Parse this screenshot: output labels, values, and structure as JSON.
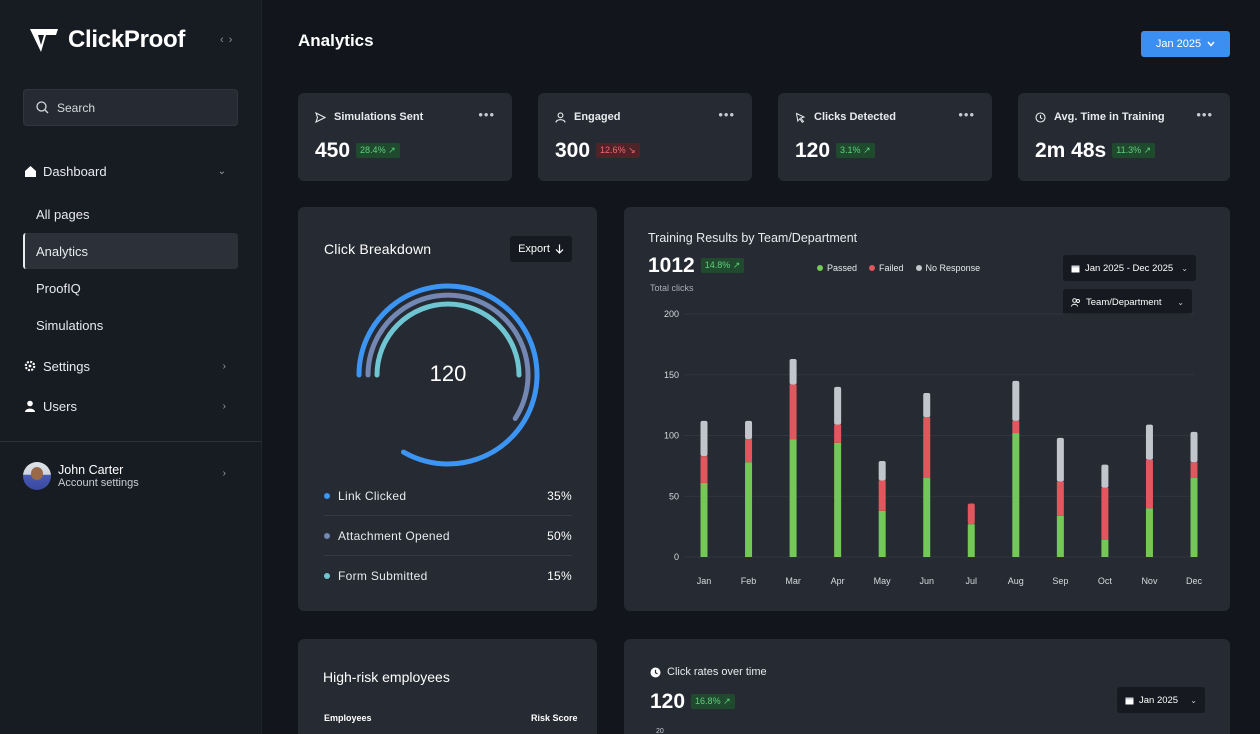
{
  "app": {
    "name": "ClickProof"
  },
  "sidebar": {
    "search_label": "Search",
    "dashboard": {
      "label": "Dashboard"
    },
    "dashboard_items": [
      {
        "label": "All pages"
      },
      {
        "label": "Analytics"
      },
      {
        "label": "ProofIQ"
      },
      {
        "label": "Simulations"
      }
    ],
    "settings": {
      "label": "Settings"
    },
    "users": {
      "label": "Users"
    },
    "account": {
      "name": "John Carter",
      "subtitle": "Account settings"
    }
  },
  "header": {
    "title": "Analytics",
    "date_button": "Jan 2025"
  },
  "stats": [
    {
      "label": "Simulations Sent",
      "value": "450",
      "delta": "28.4%",
      "trend": "up",
      "icon": "send-icon"
    },
    {
      "label": "Engaged",
      "value": "300",
      "delta": "12.6%",
      "trend": "down",
      "icon": "user-icon"
    },
    {
      "label": "Clicks Detected",
      "value": "120",
      "delta": "3.1%",
      "trend": "up",
      "icon": "cursor-icon"
    },
    {
      "label": "Avg. Time in Training",
      "value": "2m 48s",
      "delta": "11.3%",
      "trend": "up",
      "icon": "clock-icon"
    }
  ],
  "click_breakdown": {
    "title": "Click Breakdown",
    "export_label": "Export",
    "center_value": "120",
    "items": [
      {
        "label": "Link Clicked",
        "value": "35%",
        "color": "#3d95f3"
      },
      {
        "label": "Attachment Opened",
        "value": "50%",
        "color": "#7387b3"
      },
      {
        "label": "Form Submitted",
        "value": "15%",
        "color": "#6fc6d2"
      }
    ]
  },
  "training": {
    "title": "Training Results by Team/Department",
    "total": "1012",
    "delta": "14.8%",
    "total_label": "Total clicks",
    "date_range": "Jan 2025 - Dec 2025",
    "group_by": "Team/Department"
  },
  "high_risk": {
    "title": "High-risk employees",
    "col_employees": "Employees",
    "col_risk": "Risk Score"
  },
  "click_rates": {
    "title": "Click rates over time",
    "value": "120",
    "delta": "16.8%",
    "date": "Jan 2025",
    "first_tick": "20"
  },
  "colors": {
    "accent": "#3b8ff2",
    "passed": "#74c857",
    "failed": "#e0575d",
    "no_response": "#c2c6cc"
  },
  "chart_data": {
    "type": "bar",
    "stacked": true,
    "categories": [
      "Jan",
      "Feb",
      "Mar",
      "Apr",
      "May",
      "Jun",
      "Jul",
      "Aug",
      "Sep",
      "Oct",
      "Nov",
      "Dec"
    ],
    "series": [
      {
        "name": "Passed",
        "values": [
          61,
          78,
          97,
          94,
          38,
          65,
          27,
          102,
          34,
          14,
          40,
          65
        ]
      },
      {
        "name": "Failed",
        "values": [
          22,
          19,
          45,
          15,
          25,
          50,
          17,
          10,
          28,
          43,
          40,
          13
        ]
      },
      {
        "name": "No Response",
        "values": [
          29,
          15,
          21,
          31,
          16,
          20,
          0,
          33,
          36,
          19,
          29,
          25
        ]
      }
    ],
    "yticks": [
      0,
      50,
      100,
      150,
      200
    ],
    "ylim": [
      0,
      200
    ],
    "legend": "top"
  }
}
